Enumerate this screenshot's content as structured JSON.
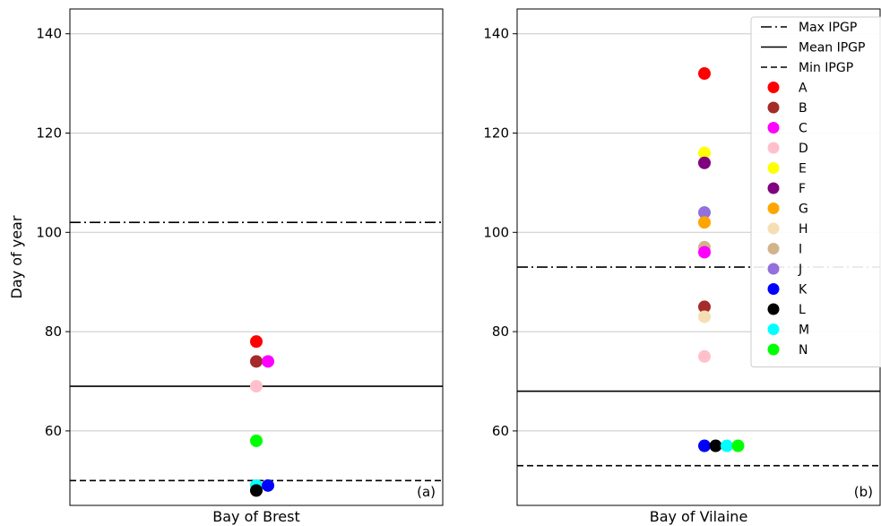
{
  "chart_data": [
    {
      "type": "scatter",
      "panel_tag": "(a)",
      "xlabel": "Bay of Brest",
      "ylabel": "Day of year",
      "ylim": [
        45,
        145
      ],
      "yticks": [
        60,
        80,
        100,
        120,
        140
      ],
      "grid": "horizontal",
      "reference_lines": [
        {
          "name": "Max IPGP",
          "style": "dash-dot",
          "y": 102
        },
        {
          "name": "Mean IPGP",
          "style": "solid",
          "y": 69
        },
        {
          "name": "Min IPGP",
          "style": "dashed",
          "y": 50
        }
      ],
      "points": [
        {
          "label": "A",
          "offset": 0,
          "y": 78
        },
        {
          "label": "B",
          "offset": 0,
          "y": 74
        },
        {
          "label": "C",
          "offset": 1,
          "y": 74
        },
        {
          "label": "D",
          "offset": 0,
          "y": 69
        },
        {
          "label": "N",
          "offset": 0,
          "y": 58
        },
        {
          "label": "M",
          "offset": 0,
          "y": 49
        },
        {
          "label": "L",
          "offset": 0,
          "y": 48
        },
        {
          "label": "K",
          "offset": 1,
          "y": 49
        }
      ]
    },
    {
      "type": "scatter",
      "panel_tag": "(b)",
      "xlabel": "Bay of Vilaine",
      "ylabel": "",
      "ylim": [
        45,
        145
      ],
      "yticks": [
        60,
        80,
        100,
        120,
        140
      ],
      "grid": "horizontal",
      "legend_position": "top-right",
      "reference_lines": [
        {
          "name": "Max IPGP",
          "style": "dash-dot",
          "y": 93
        },
        {
          "name": "Mean IPGP",
          "style": "solid",
          "y": 68
        },
        {
          "name": "Min IPGP",
          "style": "dashed",
          "y": 53
        }
      ],
      "points": [
        {
          "label": "A",
          "offset": 0,
          "y": 132
        },
        {
          "label": "E",
          "offset": 0,
          "y": 116
        },
        {
          "label": "F",
          "offset": 0,
          "y": 114
        },
        {
          "label": "J",
          "offset": 0,
          "y": 104
        },
        {
          "label": "G",
          "offset": 0,
          "y": 102
        },
        {
          "label": "I",
          "offset": 0,
          "y": 97
        },
        {
          "label": "C",
          "offset": 0,
          "y": 96
        },
        {
          "label": "B",
          "offset": 0,
          "y": 85
        },
        {
          "label": "H",
          "offset": 0,
          "y": 83
        },
        {
          "label": "D",
          "offset": 0,
          "y": 75
        },
        {
          "label": "K",
          "offset": 0,
          "y": 57
        },
        {
          "label": "L",
          "offset": 1,
          "y": 57
        },
        {
          "label": "M",
          "offset": 2,
          "y": 57
        },
        {
          "label": "N",
          "offset": 3,
          "y": 57
        }
      ]
    }
  ],
  "legend": {
    "lines": [
      {
        "label": "Max IPGP",
        "style": "dash-dot"
      },
      {
        "label": "Mean IPGP",
        "style": "solid"
      },
      {
        "label": "Min IPGP",
        "style": "dashed"
      }
    ],
    "sites": [
      {
        "label": "A",
        "color": "#ff0000"
      },
      {
        "label": "B",
        "color": "#a52a2a"
      },
      {
        "label": "C",
        "color": "#ff00ff"
      },
      {
        "label": "D",
        "color": "#ffc0cb"
      },
      {
        "label": "E",
        "color": "#ffff00"
      },
      {
        "label": "F",
        "color": "#800080"
      },
      {
        "label": "G",
        "color": "#ffa500"
      },
      {
        "label": "H",
        "color": "#f5deb3"
      },
      {
        "label": "I",
        "color": "#d2b48c"
      },
      {
        "label": "J",
        "color": "#9370db"
      },
      {
        "label": "K",
        "color": "#0000ff"
      },
      {
        "label": "L",
        "color": "#000000"
      },
      {
        "label": "M",
        "color": "#00ffff"
      },
      {
        "label": "N",
        "color": "#00ff00"
      }
    ]
  }
}
